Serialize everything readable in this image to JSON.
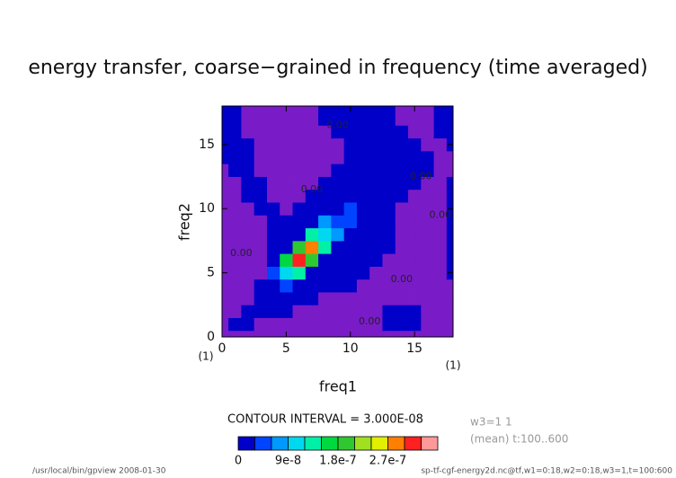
{
  "chart_data": {
    "type": "contour",
    "title": "energy transfer, coarse−grained in frequency (time averaged)",
    "x_label": "freq1",
    "y_label": "freq2",
    "x_unit": "(1)",
    "y_unit": "(1)",
    "xlim": [
      0,
      18
    ],
    "ylim": [
      0,
      18
    ],
    "xticks": [
      0,
      5,
      10,
      15
    ],
    "yticks": [
      0,
      5,
      10,
      15
    ],
    "below_color": "#7a1bc8",
    "z": [
      [
        -1e-08,
        -1e-08,
        -1e-08,
        -1e-08,
        -1e-08,
        -1e-08,
        -1e-08,
        -1e-08,
        -1e-08,
        -1e-08,
        -1e-08,
        -1e-08,
        -1e-08,
        -1e-08,
        -1e-08,
        -1e-08,
        -1e-08,
        -1e-08,
        -1e-08
      ],
      [
        -1e-08,
        1e-08,
        1e-08,
        -1e-08,
        -1e-08,
        -1e-08,
        -1e-08,
        -1e-08,
        -1e-08,
        -1e-08,
        -1e-08,
        -1e-08,
        -1e-08,
        1e-08,
        1e-08,
        1e-08,
        -1e-08,
        -1e-08,
        -1e-08
      ],
      [
        -1e-08,
        -1e-08,
        1e-08,
        1e-08,
        1e-08,
        1e-08,
        -1e-08,
        -1e-08,
        -1e-08,
        -1e-08,
        -1e-08,
        -1e-08,
        -1e-08,
        1e-08,
        1e-08,
        1e-08,
        -1e-08,
        -1e-08,
        -1e-08
      ],
      [
        -1e-08,
        -1e-08,
        -1e-08,
        1e-08,
        1e-08,
        1e-08,
        1e-08,
        1e-08,
        -1e-08,
        -1e-08,
        -1e-08,
        -1e-08,
        -1e-08,
        -1e-08,
        -1e-08,
        -1e-08,
        -1e-08,
        -1e-08,
        -1e-08
      ],
      [
        -1e-08,
        -1e-08,
        -1e-08,
        1e-08,
        1e-08,
        4e-08,
        1e-08,
        1e-08,
        1e-08,
        1e-08,
        1e-08,
        -1e-08,
        -1e-08,
        -1e-08,
        -1e-08,
        -1e-08,
        -1e-08,
        -1e-08,
        -1e-08
      ],
      [
        -1e-08,
        -1e-08,
        -1e-08,
        -1e-08,
        5e-08,
        9e-08,
        1.2e-07,
        1e-08,
        1e-08,
        1e-08,
        1e-08,
        1e-08,
        -1e-08,
        -1e-08,
        -1e-08,
        -1e-08,
        -1e-08,
        -1e-08,
        1e-08
      ],
      [
        -1e-08,
        -1e-08,
        -1e-08,
        -1e-08,
        1e-08,
        1.5e-07,
        3.1e-07,
        2e-07,
        1e-08,
        1e-08,
        1e-08,
        1e-08,
        1e-08,
        -1e-08,
        -1e-08,
        -1e-08,
        -1e-08,
        -1e-08,
        1e-08
      ],
      [
        -1e-08,
        -1e-08,
        -1e-08,
        -1e-08,
        1e-08,
        1e-08,
        1.8e-07,
        2.8e-07,
        1.3e-07,
        1e-08,
        1e-08,
        1e-08,
        1e-08,
        1e-08,
        -1e-08,
        -1e-08,
        -1e-08,
        -1e-08,
        1e-08
      ],
      [
        -1e-08,
        -1e-08,
        -1e-08,
        -1e-08,
        1e-08,
        1e-08,
        1e-08,
        1.4e-07,
        9e-08,
        6e-08,
        1e-08,
        1e-08,
        1e-08,
        1e-08,
        -1e-08,
        -1e-08,
        -1e-08,
        -1e-08,
        1e-08
      ],
      [
        -1e-08,
        -1e-08,
        -1e-08,
        -1e-08,
        1e-08,
        1e-08,
        1e-08,
        1e-08,
        7e-08,
        5e-08,
        3.5e-08,
        1e-08,
        1e-08,
        1e-08,
        -1e-08,
        -1e-08,
        -1e-08,
        -1e-08,
        1e-08
      ],
      [
        -1e-08,
        -1e-08,
        -1e-08,
        1e-08,
        1e-08,
        -1e-08,
        1e-08,
        1e-08,
        1e-08,
        1e-08,
        4e-08,
        1e-08,
        1e-08,
        1e-08,
        -1e-08,
        -1e-08,
        -1e-08,
        -1e-08,
        1e-08
      ],
      [
        -1e-08,
        -1e-08,
        1e-08,
        1e-08,
        -1e-08,
        -1e-08,
        -1e-08,
        1e-08,
        1e-08,
        1e-08,
        1e-08,
        1e-08,
        1e-08,
        1e-08,
        1e-08,
        -1e-08,
        -1e-08,
        -1e-08,
        1e-08
      ],
      [
        -1e-08,
        -1e-08,
        1e-08,
        1e-08,
        -1e-08,
        -1e-08,
        -1e-08,
        -1e-08,
        1e-08,
        1e-08,
        1e-08,
        1e-08,
        1e-08,
        1e-08,
        1e-08,
        1e-08,
        -1e-08,
        -1e-08,
        1e-08
      ],
      [
        -1e-08,
        1e-08,
        1e-08,
        -1e-08,
        -1e-08,
        -1e-08,
        -1e-08,
        -1e-08,
        -1e-08,
        1e-08,
        1e-08,
        1e-08,
        1e-08,
        1e-08,
        1e-08,
        1e-08,
        1e-08,
        -1e-08,
        -1e-08
      ],
      [
        1e-08,
        1e-08,
        1e-08,
        -1e-08,
        -1e-08,
        -1e-08,
        -1e-08,
        -1e-08,
        -1e-08,
        -1e-08,
        1e-08,
        1e-08,
        1e-08,
        1e-08,
        1e-08,
        1e-08,
        1e-08,
        -1e-08,
        -1e-08
      ],
      [
        1e-08,
        1e-08,
        1e-08,
        -1e-08,
        -1e-08,
        -1e-08,
        -1e-08,
        -1e-08,
        -1e-08,
        -1e-08,
        1e-08,
        1e-08,
        1e-08,
        1e-08,
        1e-08,
        1e-08,
        -1e-08,
        -1e-08,
        1e-08
      ],
      [
        1e-08,
        1e-08,
        -1e-08,
        -1e-08,
        -1e-08,
        -1e-08,
        -1e-08,
        -1e-08,
        -1e-08,
        1e-08,
        1e-08,
        1e-08,
        1e-08,
        1e-08,
        1e-08,
        -1e-08,
        -1e-08,
        1e-08,
        1e-08
      ],
      [
        1e-08,
        1e-08,
        -1e-08,
        -1e-08,
        -1e-08,
        -1e-08,
        -1e-08,
        -1e-08,
        1e-08,
        1e-08,
        1e-08,
        1e-08,
        1e-08,
        1e-08,
        -1e-08,
        -1e-08,
        -1e-08,
        1e-08,
        1e-08
      ],
      [
        1e-08,
        1e-08,
        -1e-08,
        -1e-08,
        -1e-08,
        -1e-08,
        -1e-08,
        -1e-08,
        1e-08,
        1e-08,
        1e-08,
        1e-08,
        1e-08,
        1e-08,
        -1e-08,
        -1e-08,
        -1e-08,
        1e-08,
        1e-08
      ]
    ],
    "contour_labels": [
      {
        "label": "0.00",
        "x": 9,
        "y": 16.5
      },
      {
        "label": "0.00",
        "x": 7,
        "y": 11.5
      },
      {
        "label": "0.00",
        "x": 15.5,
        "y": 12.5
      },
      {
        "label": "0.00",
        "x": 17,
        "y": 9.5
      },
      {
        "label": "0.00",
        "x": 1.5,
        "y": 6.5
      },
      {
        "label": "0.00",
        "x": 14,
        "y": 4.5
      },
      {
        "label": "0.00",
        "x": 11.5,
        "y": 1.2
      }
    ],
    "contour_interval": "CONTOUR INTERVAL = 3.000E-08",
    "colorbar": {
      "levels": [
        0,
        3e-08,
        6e-08,
        9e-08,
        1.2e-07,
        1.5e-07,
        1.8e-07,
        2.1e-07,
        2.4e-07,
        2.7e-07,
        3e-07,
        3.3e-07,
        3.6e-07
      ],
      "colors": [
        "#0000c8",
        "#0044ff",
        "#0099ff",
        "#00d8f0",
        "#00f0a8",
        "#00d840",
        "#30c830",
        "#a0e020",
        "#e0f000",
        "#ff8000",
        "#ff2020",
        "#ff9898"
      ],
      "ticks": [
        0,
        9e-08,
        1.8e-07,
        2.7e-07
      ]
    },
    "info": [
      "w3=1 1",
      "(mean) t:100..600"
    ],
    "footer_left": "/usr/local/bin/gpview  2008-01-30",
    "footer_right": "sp-tf-cgf-energy2d.nc@tf,w1=0:18,w2=0:18,w3=1,t=100:600"
  }
}
